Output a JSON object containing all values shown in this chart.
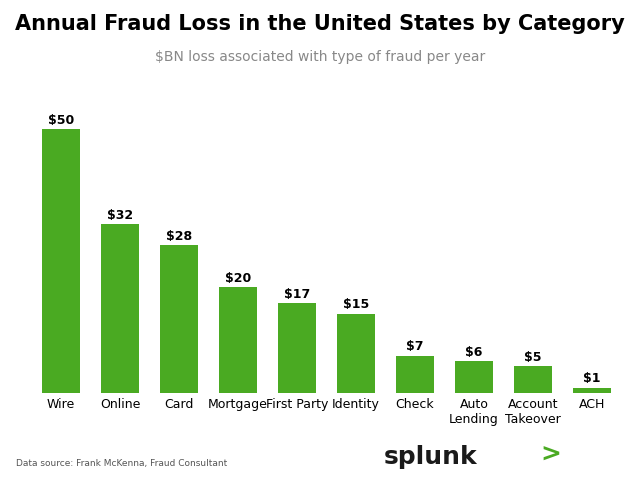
{
  "title": "Annual Fraud Loss in the United States by Category",
  "subtitle": "$BN loss associated with type of fraud per year",
  "categories": [
    "Wire",
    "Online",
    "Card",
    "Mortgage",
    "First Party",
    "Identity",
    "Check",
    "Auto\nLending",
    "Account\nTakeover",
    "ACH"
  ],
  "values": [
    50,
    32,
    28,
    20,
    17,
    15,
    7,
    6,
    5,
    1
  ],
  "bar_color": "#4aaa22",
  "bar_labels": [
    "$50",
    "$32",
    "$28",
    "$20",
    "$17",
    "$15",
    "$7",
    "$6",
    "$5",
    "$1"
  ],
  "datasource": "Data source: Frank McKenna, Fraud Consultant",
  "background_color": "#ffffff",
  "title_fontsize": 15,
  "subtitle_fontsize": 10,
  "label_fontsize": 9,
  "tick_fontsize": 9,
  "datasource_fontsize": 6.5,
  "splunk_fontsize": 18,
  "ylim": [
    0,
    60
  ]
}
